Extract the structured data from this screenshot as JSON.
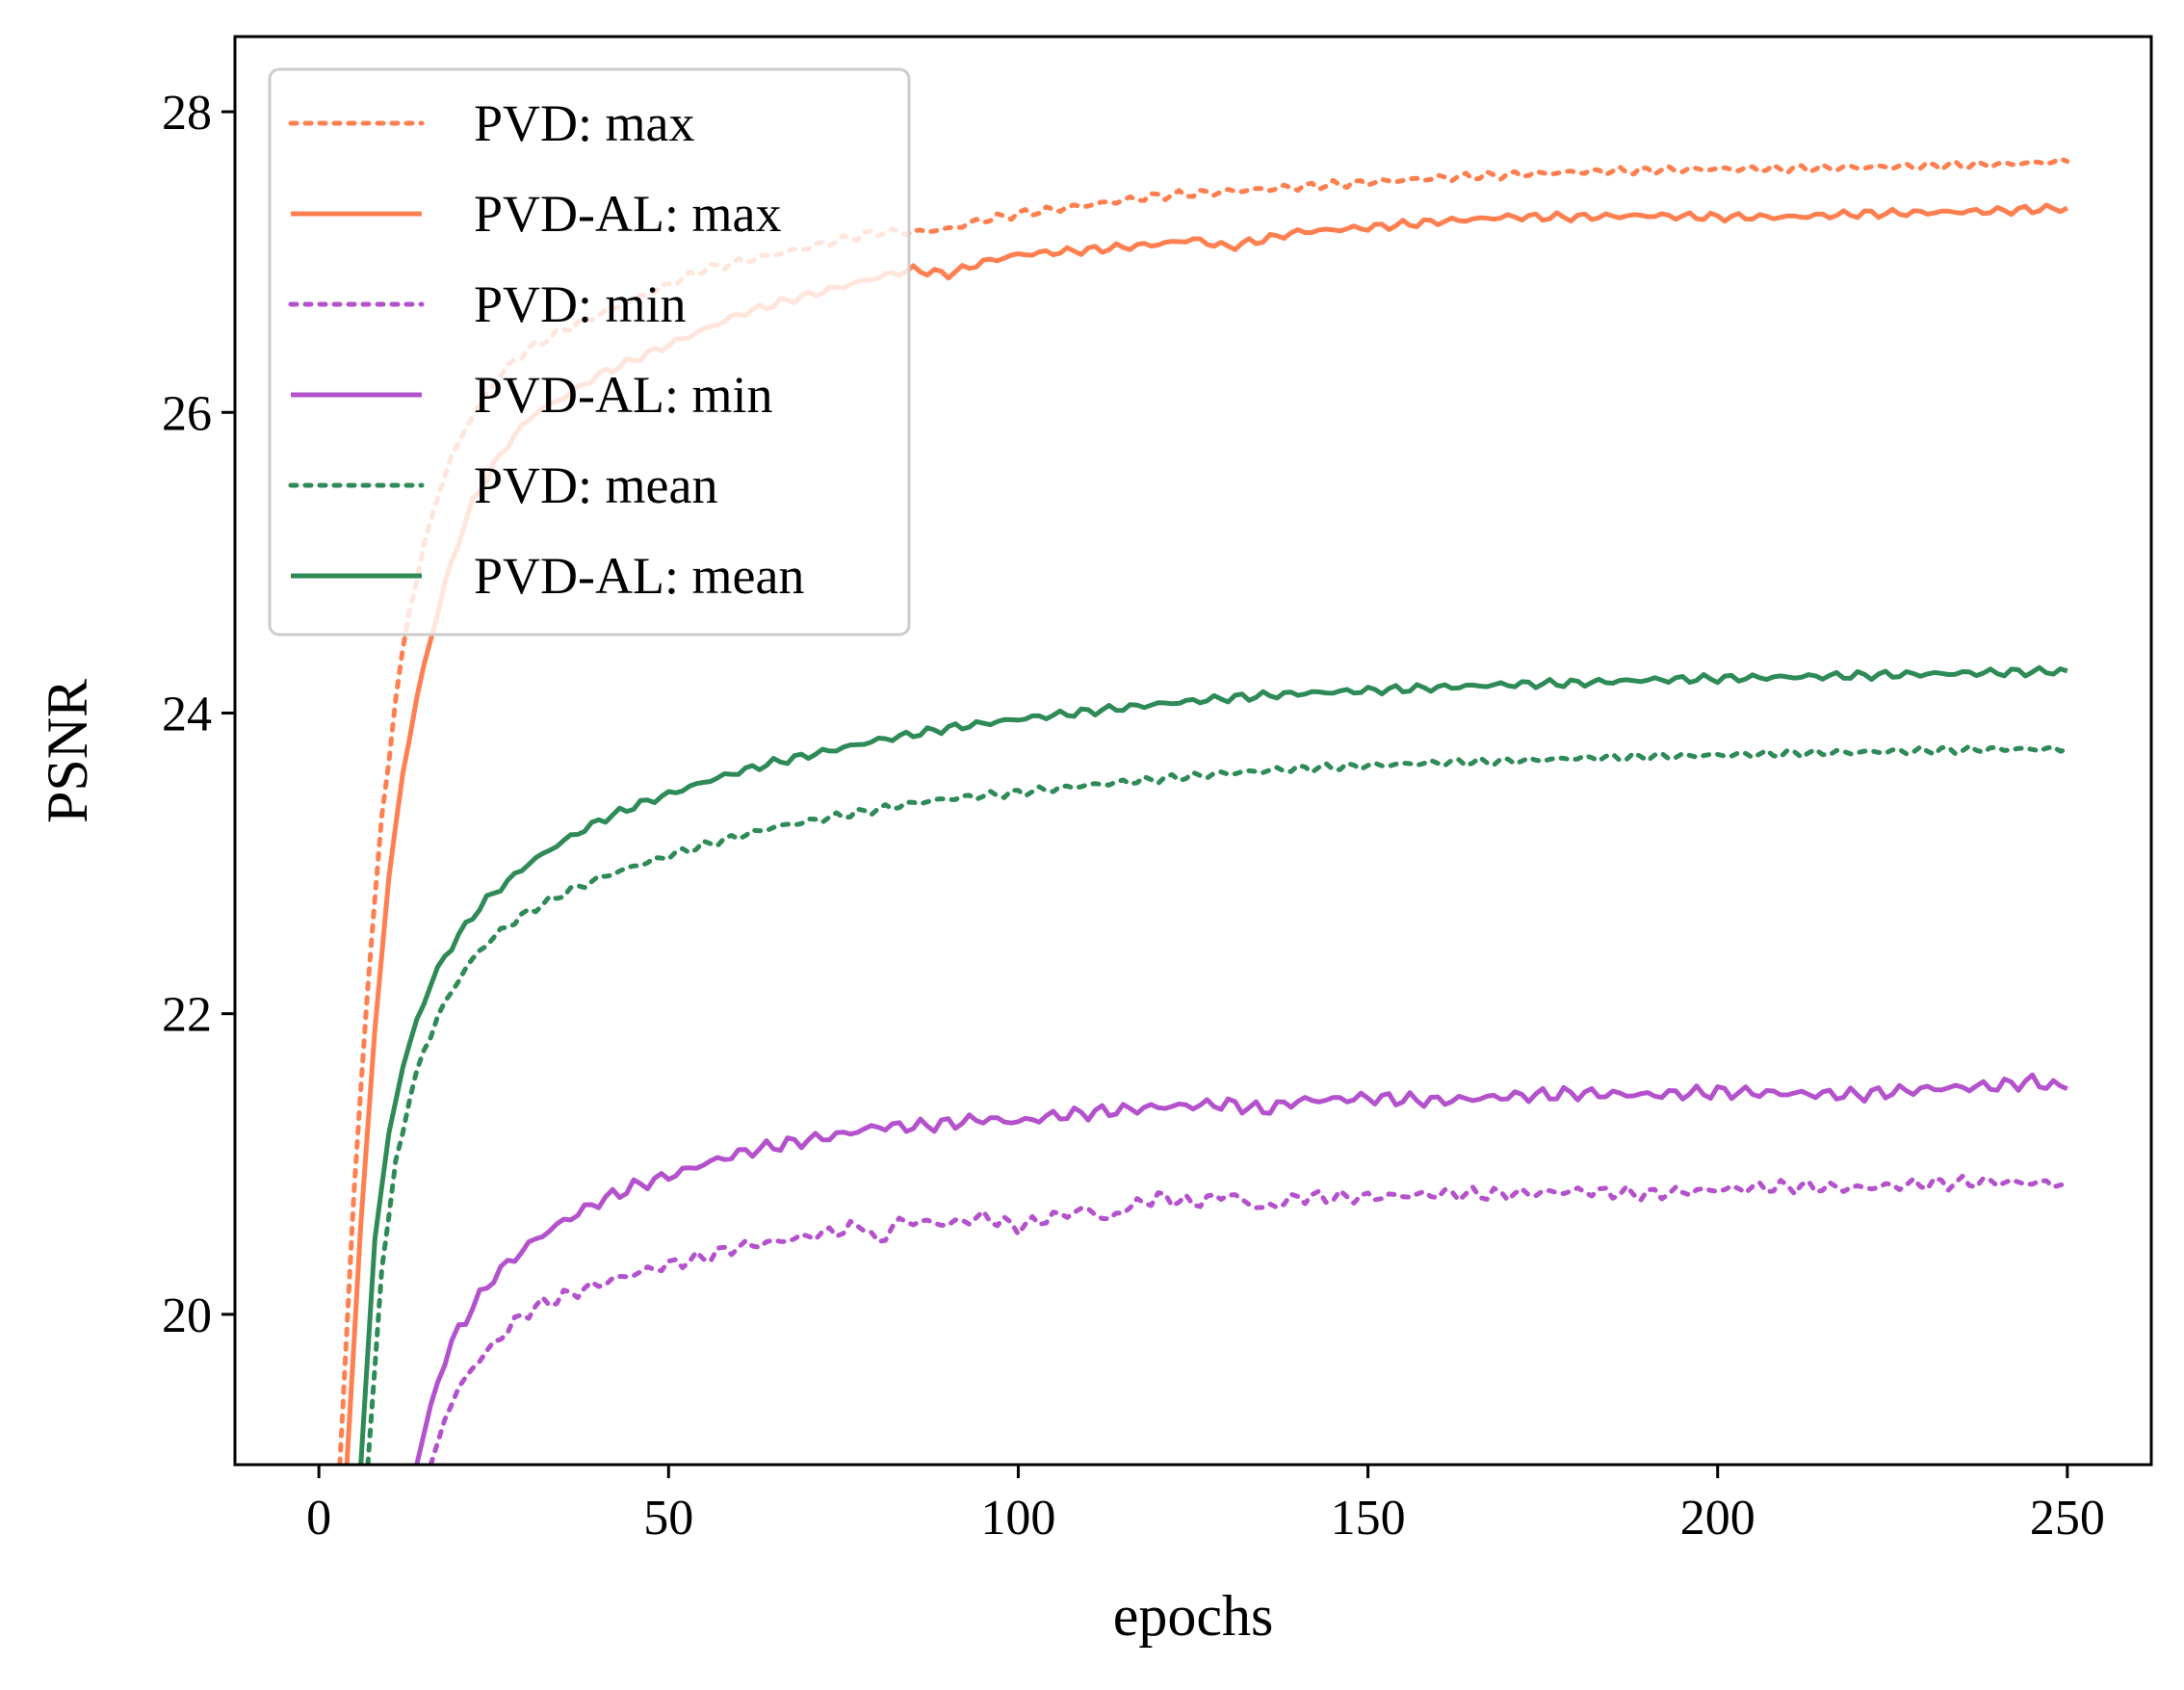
{
  "chart_data": {
    "type": "line",
    "title": "",
    "xlabel": "epochs",
    "ylabel": "PSNR",
    "xlim": [
      -12,
      262
    ],
    "ylim": [
      19.0,
      28.5
    ],
    "xticks": [
      0,
      50,
      100,
      150,
      200,
      250
    ],
    "xtick_labels": [
      "0",
      "50",
      "100",
      "150",
      "200",
      "250"
    ],
    "yticks": [
      20,
      22,
      24,
      26,
      28
    ],
    "ytick_labels": [
      "20",
      "22",
      "24",
      "26",
      "28"
    ],
    "grid": false,
    "legend_position": "top-left",
    "colors": {
      "max": "#FF7F50",
      "min": "#B452CD",
      "mean": "#2E8B57"
    },
    "series": [
      {
        "name": "PVD: max",
        "color": "#FF7F50",
        "style": "dotted",
        "x": [
          3,
          5,
          7,
          9,
          11,
          13,
          15,
          17,
          19,
          21,
          23,
          25,
          28,
          31,
          35,
          40,
          45,
          50,
          55,
          60,
          65,
          70,
          75,
          80,
          85,
          90,
          95,
          100,
          110,
          120,
          130,
          140,
          150,
          160,
          170,
          180,
          190,
          200,
          210,
          220,
          230,
          240,
          250
        ],
        "values": [
          19.0,
          20.8,
          22.2,
          23.3,
          24.1,
          24.7,
          25.1,
          25.45,
          25.7,
          25.9,
          26.05,
          26.2,
          26.35,
          26.45,
          26.55,
          26.65,
          26.75,
          26.85,
          26.95,
          27.0,
          27.05,
          27.1,
          27.15,
          27.2,
          27.2,
          27.22,
          27.28,
          27.32,
          27.38,
          27.44,
          27.47,
          27.5,
          27.53,
          27.56,
          27.58,
          27.6,
          27.61,
          27.62,
          27.62,
          27.63,
          27.64,
          27.65,
          27.67
        ]
      },
      {
        "name": "PVD-AL: max",
        "color": "#FF7F50",
        "style": "solid",
        "x": [
          4,
          6,
          8,
          10,
          12,
          14,
          16,
          18,
          20,
          22,
          25,
          28,
          31,
          35,
          40,
          45,
          50,
          55,
          60,
          65,
          70,
          75,
          80,
          85,
          88,
          90,
          95,
          100,
          110,
          120,
          125,
          130,
          140,
          150,
          160,
          170,
          180,
          190,
          200,
          210,
          220,
          230,
          240,
          250
        ],
        "values": [
          19.0,
          20.6,
          21.9,
          22.9,
          23.6,
          24.1,
          24.5,
          24.85,
          25.15,
          25.4,
          25.65,
          25.85,
          26.0,
          26.1,
          26.25,
          26.35,
          26.45,
          26.55,
          26.65,
          26.72,
          26.78,
          26.84,
          26.9,
          26.95,
          26.93,
          26.92,
          27.0,
          27.05,
          27.08,
          27.12,
          27.15,
          27.1,
          27.2,
          27.23,
          27.27,
          27.3,
          27.3,
          27.31,
          27.3,
          27.3,
          27.32,
          27.33,
          27.34,
          27.36
        ]
      },
      {
        "name": "PVD: min",
        "color": "#B452CD",
        "style": "dotted",
        "x": [
          16,
          18,
          20,
          22,
          25,
          28,
          31,
          35,
          40,
          45,
          50,
          55,
          60,
          65,
          70,
          75,
          78,
          80,
          82,
          85,
          90,
          95,
          100,
          105,
          110,
          113,
          115,
          120,
          125,
          130,
          135,
          140,
          150,
          160,
          170,
          180,
          190,
          200,
          210,
          220,
          230,
          240,
          250
        ],
        "values": [
          19.0,
          19.3,
          19.5,
          19.65,
          19.8,
          19.95,
          20.05,
          20.12,
          20.2,
          20.27,
          20.33,
          20.38,
          20.45,
          20.48,
          20.52,
          20.56,
          20.6,
          20.45,
          20.6,
          20.62,
          20.6,
          20.65,
          20.58,
          20.65,
          20.7,
          20.62,
          20.7,
          20.78,
          20.74,
          20.8,
          20.7,
          20.78,
          20.78,
          20.8,
          20.8,
          20.82,
          20.8,
          20.83,
          20.85,
          20.84,
          20.87,
          20.88,
          20.87
        ]
      },
      {
        "name": "PVD-AL: min",
        "color": "#B452CD",
        "style": "solid",
        "x": [
          14,
          16,
          18,
          20,
          22,
          25,
          28,
          31,
          35,
          40,
          45,
          50,
          55,
          60,
          65,
          70,
          75,
          80,
          85,
          90,
          95,
          100,
          105,
          110,
          120,
          130,
          135,
          140,
          150,
          160,
          170,
          180,
          190,
          200,
          210,
          220,
          230,
          240,
          245,
          250
        ],
        "values": [
          19.0,
          19.4,
          19.7,
          19.9,
          20.05,
          20.25,
          20.38,
          20.5,
          20.62,
          20.75,
          20.85,
          20.92,
          21.0,
          21.07,
          21.12,
          21.16,
          21.2,
          21.25,
          21.25,
          21.27,
          21.3,
          21.28,
          21.32,
          21.34,
          21.38,
          21.4,
          21.36,
          21.42,
          21.44,
          21.42,
          21.45,
          21.47,
          21.46,
          21.48,
          21.47,
          21.46,
          21.5,
          21.52,
          21.55,
          21.5
        ]
      },
      {
        "name": "PVD: mean",
        "color": "#2E8B57",
        "style": "dotted",
        "x": [
          7,
          9,
          11,
          13,
          15,
          17,
          19,
          21,
          23,
          26,
          30,
          35,
          40,
          45,
          50,
          55,
          60,
          65,
          70,
          75,
          80,
          85,
          90,
          95,
          100,
          110,
          120,
          130,
          140,
          150,
          160,
          170,
          180,
          190,
          200,
          210,
          220,
          230,
          240,
          250
        ],
        "values": [
          19.0,
          20.3,
          21.0,
          21.45,
          21.75,
          21.98,
          22.15,
          22.3,
          22.42,
          22.55,
          22.68,
          22.8,
          22.9,
          22.98,
          23.05,
          23.12,
          23.18,
          23.24,
          23.28,
          23.32,
          23.36,
          23.4,
          23.43,
          23.45,
          23.47,
          23.52,
          23.56,
          23.6,
          23.63,
          23.65,
          23.67,
          23.68,
          23.7,
          23.71,
          23.72,
          23.73,
          23.74,
          23.75,
          23.76,
          23.76
        ]
      },
      {
        "name": "PVD-AL: mean",
        "color": "#2E8B57",
        "style": "solid",
        "x": [
          6,
          8,
          10,
          12,
          14,
          16,
          18,
          20,
          22,
          24,
          27,
          30,
          35,
          40,
          45,
          50,
          55,
          60,
          65,
          70,
          75,
          80,
          85,
          90,
          95,
          100,
          110,
          120,
          130,
          140,
          150,
          160,
          170,
          180,
          190,
          200,
          210,
          220,
          230,
          240,
          250
        ],
        "values": [
          19.0,
          20.5,
          21.2,
          21.65,
          21.95,
          22.2,
          22.38,
          22.52,
          22.65,
          22.76,
          22.88,
          23.0,
          23.15,
          23.28,
          23.38,
          23.46,
          23.54,
          23.61,
          23.67,
          23.72,
          23.77,
          23.82,
          23.86,
          23.9,
          23.93,
          23.96,
          24.01,
          24.06,
          24.1,
          24.13,
          24.15,
          24.17,
          24.19,
          24.2,
          24.22,
          24.23,
          24.24,
          24.25,
          24.26,
          24.27,
          24.28
        ]
      }
    ]
  }
}
